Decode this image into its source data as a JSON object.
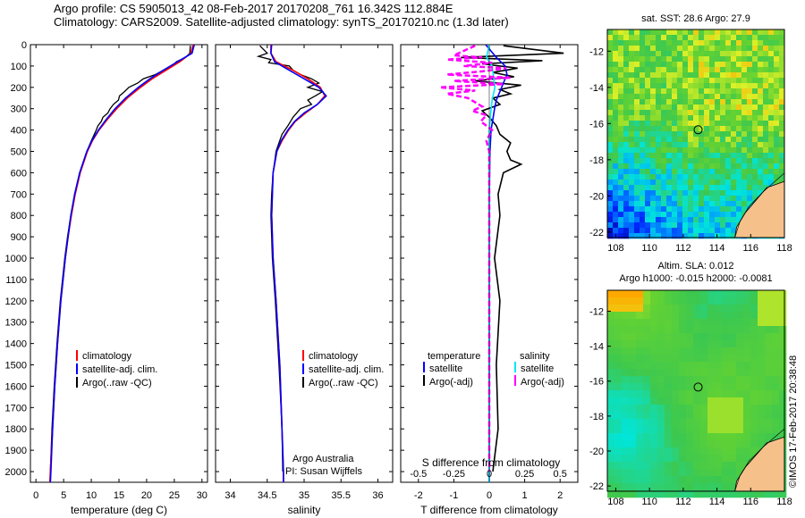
{
  "header": {
    "line1": "Argo profile: CS 5905013_42 08-Feb-2017 20170208_761 16.342S 112.884E",
    "line2": "Climatology: CARS2009. Satellite-adjusted climatology: synTS_20170210.nc (1.3d later)"
  },
  "colors": {
    "climatology": "#ff0000",
    "satellite": "#0000ff",
    "argo": "#000000",
    "sat_salinity": "#00e5ff",
    "argo_salinity": "#ff00ff",
    "land": "#f5c08a"
  },
  "chart_data": [
    {
      "type": "line",
      "id": "temperature-profile",
      "xlabel": "temperature (deg C)",
      "ylabel": "",
      "xlim": [
        -1,
        31
      ],
      "ylim": [
        2050,
        0
      ],
      "xticks": [
        "0",
        "5",
        "10",
        "15",
        "20",
        "25",
        "30"
      ],
      "yticks": [
        "0",
        "100",
        "200",
        "300",
        "400",
        "500",
        "600",
        "700",
        "800",
        "900",
        "1000",
        "1100",
        "1200",
        "1300",
        "1400",
        "1500",
        "1600",
        "1700",
        "1800",
        "1900",
        "2000"
      ],
      "legend": [
        "climatology",
        "satellite-adj. clim.",
        "Argo(..raw -QC)"
      ],
      "series": [
        {
          "name": "climatology",
          "depth": [
            0,
            40,
            80,
            120,
            160,
            200,
            250,
            300,
            350,
            400,
            450,
            500,
            600,
            700,
            800,
            900,
            1000,
            1200,
            1400,
            1600,
            1800,
            2000,
            2050
          ],
          "values": [
            28.4,
            28.0,
            26.0,
            23.5,
            21.0,
            18.9,
            16.5,
            14.6,
            12.9,
            11.4,
            10.2,
            9.3,
            8.0,
            7.1,
            6.4,
            5.8,
            5.3,
            4.5,
            3.9,
            3.4,
            3.0,
            2.6,
            2.5
          ]
        },
        {
          "name": "satellite-adj. clim.",
          "depth": [
            0,
            40,
            80,
            120,
            160,
            200,
            250,
            300,
            350,
            400,
            450,
            500,
            600,
            700,
            800,
            900,
            1000,
            1200,
            1400,
            1600,
            1800,
            2000,
            2050
          ],
          "values": [
            28.6,
            28.2,
            25.6,
            23.0,
            20.6,
            18.5,
            16.2,
            14.3,
            12.7,
            11.3,
            10.1,
            9.2,
            7.9,
            7.0,
            6.3,
            5.8,
            5.3,
            4.5,
            3.9,
            3.4,
            3.0,
            2.7,
            2.6
          ]
        },
        {
          "name": "Argo(..raw -QC)",
          "depth": [
            5,
            40,
            60,
            80,
            100,
            120,
            140,
            160,
            180,
            200,
            220,
            240,
            260,
            280,
            300,
            320,
            340,
            360,
            380,
            400,
            450,
            500,
            600,
            700,
            800,
            900,
            1000,
            1200,
            1400,
            1600,
            1800,
            2000
          ],
          "values": [
            27.9,
            27.8,
            27.0,
            25.4,
            24.6,
            23.0,
            21.6,
            19.4,
            18.4,
            16.8,
            16.0,
            15.1,
            14.9,
            14.0,
            13.4,
            13.0,
            12.1,
            11.8,
            11.2,
            10.9,
            10.0,
            9.2,
            7.9,
            7.0,
            6.3,
            5.7,
            5.2,
            4.4,
            3.8,
            3.3,
            2.9,
            2.6
          ]
        }
      ]
    },
    {
      "type": "line",
      "id": "salinity-profile",
      "xlabel": "salinity",
      "xlim": [
        33.8,
        36.2
      ],
      "ylim": [
        2050,
        0
      ],
      "xticks": [
        "34",
        "34.5",
        "35",
        "35.5",
        "36"
      ],
      "legend": [
        "climatology",
        "satellite-adj. clim.",
        "Argo(..raw -QC)"
      ],
      "annotations": [
        "Argo Australia",
        "PI: Susan Wijffels"
      ],
      "series": [
        {
          "name": "climatology",
          "depth": [
            0,
            40,
            80,
            120,
            160,
            200,
            240,
            280,
            320,
            360,
            400,
            450,
            500,
            600,
            800,
            1000,
            1200,
            1500,
            2000,
            2050
          ],
          "values": [
            34.55,
            34.55,
            34.62,
            34.85,
            35.05,
            35.22,
            35.28,
            35.18,
            35.02,
            34.88,
            34.79,
            34.7,
            34.63,
            34.58,
            34.56,
            34.58,
            34.62,
            34.67,
            34.72,
            34.72
          ]
        },
        {
          "name": "satellite-adj. clim.",
          "depth": [
            0,
            40,
            80,
            120,
            160,
            200,
            240,
            280,
            320,
            360,
            400,
            450,
            500,
            600,
            800,
            1000,
            1200,
            1500,
            2000,
            2050
          ],
          "values": [
            34.56,
            34.55,
            34.6,
            34.8,
            35.0,
            35.2,
            35.3,
            35.18,
            35.0,
            34.87,
            34.78,
            34.69,
            34.63,
            34.58,
            34.56,
            34.58,
            34.62,
            34.67,
            34.72,
            34.72
          ]
        },
        {
          "name": "Argo(..raw -QC)",
          "depth": [
            5,
            40,
            55,
            70,
            85,
            100,
            120,
            140,
            160,
            180,
            200,
            220,
            240,
            260,
            280,
            300,
            340,
            380,
            420,
            460,
            500,
            550,
            600,
            700,
            800,
            1000,
            1200,
            1500,
            1800,
            2000
          ],
          "values": [
            34.4,
            34.5,
            34.38,
            34.55,
            34.52,
            34.8,
            34.85,
            34.95,
            35.1,
            35.2,
            35.05,
            35.25,
            35.15,
            35.05,
            35.1,
            34.95,
            34.85,
            34.78,
            34.7,
            34.66,
            34.62,
            34.6,
            34.58,
            34.56,
            34.55,
            34.57,
            34.61,
            34.66,
            34.7,
            34.71
          ]
        }
      ]
    },
    {
      "type": "line",
      "id": "difference-profile",
      "xlabel": "T difference from climatology",
      "top_axis_label": "S difference from climatology",
      "xlim": [
        -2.5,
        2.5
      ],
      "ylim": [
        2050,
        0
      ],
      "xticks": [
        "-2",
        "-1",
        "0",
        "1",
        "2"
      ],
      "top_ticks": [
        "-0.5",
        "-0.25",
        "0",
        "0.25",
        "0.5"
      ],
      "legend_temperature": [
        "temperature",
        "satellite",
        "Argo(-adj)"
      ],
      "legend_salinity": [
        "salinity",
        "satellite",
        "Argo(-adj)"
      ],
      "series": [
        {
          "name": "temperature satellite",
          "depth": [
            0,
            60,
            100,
            140,
            180,
            220,
            260,
            300,
            350,
            400,
            500,
            700,
            1000,
            1500,
            2050
          ],
          "values": [
            -0.1,
            0.2,
            0.45,
            0.5,
            0.4,
            0.3,
            0.2,
            0.15,
            0.1,
            0.05,
            0.02,
            0.0,
            0.0,
            0.0,
            0.0
          ]
        },
        {
          "name": "temperature Argo(-adj)",
          "depth": [
            5,
            40,
            60,
            75,
            90,
            110,
            130,
            150,
            170,
            190,
            210,
            230,
            250,
            280,
            310,
            340,
            380,
            420,
            460,
            500,
            540,
            560,
            600,
            700,
            800,
            1000,
            1200,
            1500,
            1800,
            2000
          ],
          "values": [
            0.4,
            2.1,
            -0.8,
            1.5,
            -0.2,
            0.8,
            0.1,
            0.7,
            -0.4,
            0.9,
            0.3,
            0.6,
            0.1,
            0.3,
            -0.2,
            0.0,
            0.2,
            0.3,
            0.6,
            0.5,
            0.6,
            0.9,
            0.4,
            0.25,
            0.3,
            0.15,
            0.3,
            0.2,
            0.25,
            0.1
          ]
        },
        {
          "name": "salinity satellite",
          "depth": [
            0,
            60,
            100,
            150,
            200,
            260,
            320,
            400,
            500,
            700,
            1000,
            1500,
            2050
          ],
          "values": [
            0.0,
            -0.02,
            0.02,
            0.03,
            0.04,
            0.02,
            0.01,
            0.0,
            0.0,
            0.0,
            0.0,
            0.0,
            0.0
          ]
        },
        {
          "name": "salinity Argo(-adj)",
          "depth": [
            5,
            50,
            60,
            70,
            85,
            100,
            110,
            125,
            140,
            155,
            170,
            185,
            200,
            215,
            230,
            250,
            270,
            290,
            310,
            330,
            360,
            400,
            450,
            500,
            600,
            800,
            1000,
            1500,
            2000
          ],
          "values": [
            -0.1,
            -0.25,
            -0.05,
            -0.3,
            0.02,
            -0.18,
            0.12,
            -0.05,
            -0.3,
            0.15,
            -0.25,
            0.1,
            -0.35,
            -0.1,
            -0.3,
            -0.15,
            -0.1,
            -0.05,
            -0.12,
            -0.02,
            -0.06,
            0.02,
            -0.02,
            0.0,
            0.0,
            0.0,
            0.0,
            0.0,
            0.0
          ]
        }
      ]
    },
    {
      "type": "heatmap",
      "id": "sst-map",
      "title": "sat. SST: 28.6  Argo: 27.9",
      "xlim": [
        107.5,
        118
      ],
      "ylim": [
        -22.3,
        -10.8
      ],
      "xticks": [
        "108",
        "110",
        "112",
        "114",
        "116",
        "118"
      ],
      "yticks": [
        "-12",
        "-14",
        "-16",
        "-18",
        "-20",
        "-22"
      ],
      "profile_location": {
        "lon": 112.884,
        "lat": -16.342
      }
    },
    {
      "type": "heatmap",
      "id": "sla-map",
      "title_line1": "Altim. SLA: 0.012",
      "title_line2": "Argo h1000: -0.015  h2000: -0.0081",
      "xlim": [
        107.5,
        118
      ],
      "ylim": [
        -22.3,
        -10.8
      ],
      "xticks": [
        "108",
        "110",
        "112",
        "114",
        "116",
        "118"
      ],
      "yticks": [
        "-12",
        "-14",
        "-16",
        "-18",
        "-20",
        "-22"
      ],
      "profile_location": {
        "lon": 112.884,
        "lat": -16.342
      },
      "credit": "©IMOS 17-Feb-2017 20:38:48"
    }
  ]
}
